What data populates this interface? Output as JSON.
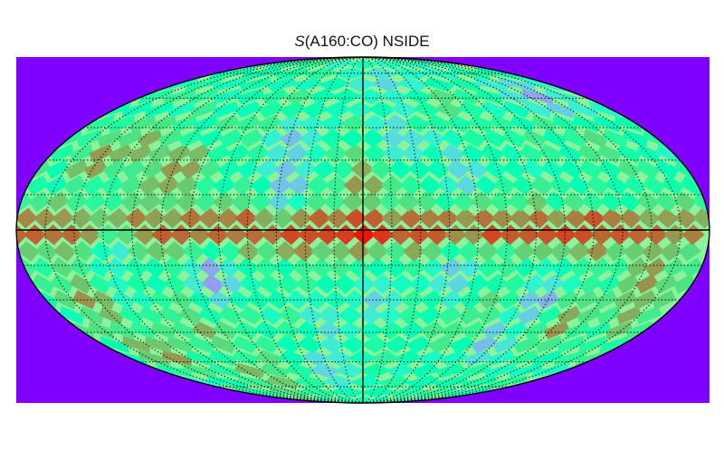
{
  "title": {
    "italic_part": "S",
    "rest": "(A160:CO) NSIDE"
  },
  "colors": {
    "background_fill": "#7F00FF",
    "graticule": "#000000",
    "sphere_outline": "#000000",
    "colormap": "rainbow"
  },
  "chart_data": {
    "type": "heatmap",
    "projection": "mollweide",
    "title": "S(A160:CO) NSIDE",
    "graticule": {
      "meridian_step_deg": 15,
      "parallel_step_deg": 15,
      "style": "dotted",
      "solid_lines": [
        "equator",
        "central-meridian"
      ]
    },
    "colorbar": "none",
    "pattern": "low-resolution pixelized sky map; high values (red) concentrated along the equatorial band, patches of elevated values at mid latitudes, lower values (cyan/blue) scattered at mid-high latitudes, background level green",
    "regions": [
      {
        "lon": 0,
        "lat": 0,
        "value": 0.95
      },
      {
        "lon": 30,
        "lat": 0,
        "value": 0.9
      },
      {
        "lon": -30,
        "lat": 0,
        "value": 0.92
      },
      {
        "lon": 60,
        "lat": 3,
        "value": 0.85
      },
      {
        "lon": -60,
        "lat": 3,
        "value": 0.88
      },
      {
        "lon": 90,
        "lat": 0,
        "value": 0.86
      },
      {
        "lon": -90,
        "lat": 0,
        "value": 0.84
      },
      {
        "lon": 120,
        "lat": 0,
        "value": 0.88
      },
      {
        "lon": -120,
        "lat": 0,
        "value": 0.86
      },
      {
        "lon": 160,
        "lat": 0,
        "value": 0.8
      },
      {
        "lon": -160,
        "lat": 0,
        "value": 0.82
      },
      {
        "lon": 0,
        "lat": 22,
        "value": 0.8
      },
      {
        "lon": -150,
        "lat": 30,
        "value": 0.82
      },
      {
        "lon": -130,
        "lat": 38,
        "value": 0.78
      },
      {
        "lon": -110,
        "lat": 20,
        "value": 0.7
      },
      {
        "lon": -100,
        "lat": 25,
        "value": 0.82
      },
      {
        "lon": 120,
        "lat": -40,
        "value": 0.84
      },
      {
        "lon": 155,
        "lat": -20,
        "value": 0.82
      },
      {
        "lon": 160,
        "lat": -35,
        "value": 0.8
      },
      {
        "lon": 80,
        "lat": -35,
        "value": 0.7
      },
      {
        "lon": -155,
        "lat": -30,
        "value": 0.82
      },
      {
        "lon": -150,
        "lat": -55,
        "value": 0.8
      },
      {
        "lon": -100,
        "lat": -45,
        "value": 0.78
      },
      {
        "lon": -90,
        "lat": -70,
        "value": 0.75
      },
      {
        "lon": 70,
        "lat": -45,
        "value": 0.78
      },
      {
        "lon": -60,
        "lat": 45,
        "value": 0.68
      },
      {
        "lon": 60,
        "lat": 60,
        "value": 0.68
      },
      {
        "lon": 140,
        "lat": 40,
        "value": 0.68
      },
      {
        "lon": -40,
        "lat": 20,
        "value": 0.2
      },
      {
        "lon": -45,
        "lat": 40,
        "value": 0.25
      },
      {
        "lon": 55,
        "lat": 25,
        "value": 0.28
      },
      {
        "lon": 50,
        "lat": -20,
        "value": 0.3
      },
      {
        "lon": 85,
        "lat": -50,
        "value": 0.22
      },
      {
        "lon": 100,
        "lat": -30,
        "value": 0.25
      },
      {
        "lon": -80,
        "lat": -20,
        "value": 0.2
      },
      {
        "lon": 145,
        "lat": 60,
        "value": 0.2
      },
      {
        "lon": 20,
        "lat": 40,
        "value": 0.3
      },
      {
        "lon": 10,
        "lat": -30,
        "value": 0.32
      },
      {
        "lon": -20,
        "lat": -45,
        "value": 0.35
      },
      {
        "lon": -130,
        "lat": -10,
        "value": 0.35
      },
      {
        "lon": 30,
        "lat": 70,
        "value": 0.3
      },
      {
        "lon": -30,
        "lat": -65,
        "value": 0.35
      }
    ]
  }
}
